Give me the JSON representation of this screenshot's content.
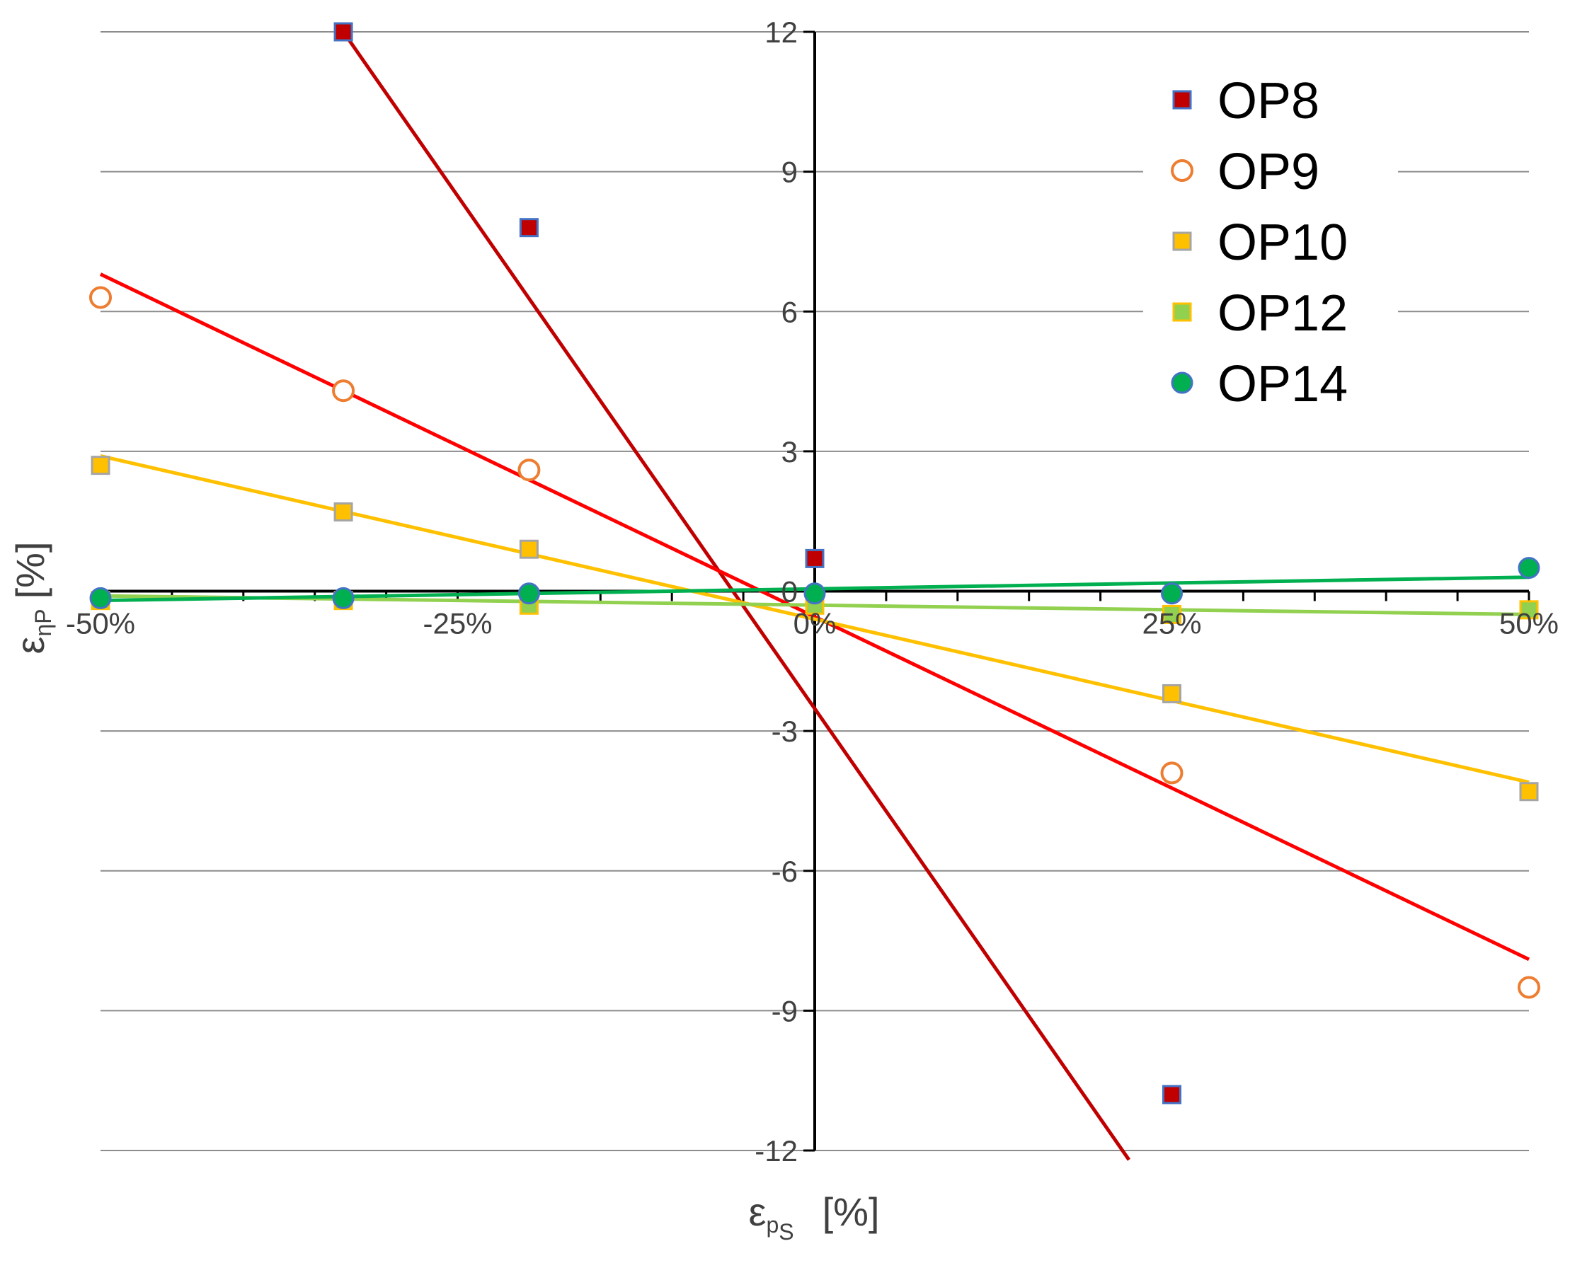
{
  "chart_data": {
    "type": "scatter",
    "title": "",
    "xlabel": {
      "symbol": "ε",
      "subscript": "p",
      "subsubscript": "S",
      "unit": "[%]"
    },
    "ylabel": {
      "symbol": "ε",
      "subscript": "ηP",
      "unit": "[%]"
    },
    "xlim": [
      -50,
      50
    ],
    "ylim": [
      -12,
      12
    ],
    "x_ticks": [
      {
        "value": -50,
        "label": "-50%"
      },
      {
        "value": -25,
        "label": "-25%"
      },
      {
        "value": 0,
        "label": "0%"
      },
      {
        "value": 25,
        "label": "25%"
      },
      {
        "value": 50,
        "label": "50%"
      }
    ],
    "y_ticks": [
      {
        "value": 12,
        "label": "12"
      },
      {
        "value": 9,
        "label": "9"
      },
      {
        "value": 6,
        "label": "6"
      },
      {
        "value": 3,
        "label": "3"
      },
      {
        "value": 0,
        "label": "0"
      },
      {
        "value": -3,
        "label": "-3"
      },
      {
        "value": -6,
        "label": "-6"
      },
      {
        "value": -9,
        "label": "-9"
      },
      {
        "value": -12,
        "label": "-12"
      }
    ],
    "grid": true,
    "legend_position": "top-right",
    "series": [
      {
        "name": "OP8",
        "marker": "square",
        "fill": "#c00000",
        "stroke": "#4472c4",
        "line_color": "#c00000",
        "points": [
          [
            -33,
            12
          ],
          [
            -20,
            7.8
          ],
          [
            0,
            0.7
          ],
          [
            25,
            -10.8
          ]
        ],
        "trend": {
          "from": [
            -33,
            12
          ],
          "to": [
            22,
            -12.2
          ]
        }
      },
      {
        "name": "OP9",
        "marker": "circle-open",
        "fill": "#ffffff",
        "stroke": "#ed7d31",
        "line_color": "#ff0000",
        "points": [
          [
            -50,
            6.3
          ],
          [
            -33,
            4.3
          ],
          [
            -20,
            2.6
          ],
          [
            25,
            -3.9
          ],
          [
            50,
            -8.5
          ]
        ],
        "trend": {
          "from": [
            -50,
            6.8
          ],
          "to": [
            50,
            -7.9
          ]
        }
      },
      {
        "name": "OP10",
        "marker": "square",
        "fill": "#ffc000",
        "stroke": "#a5a5a5",
        "line_color": "#ffc000",
        "points": [
          [
            -50,
            2.7
          ],
          [
            -33,
            1.7
          ],
          [
            -20,
            0.9
          ],
          [
            25,
            -2.2
          ],
          [
            50,
            -4.3
          ]
        ],
        "trend": {
          "from": [
            -50,
            2.9
          ],
          "to": [
            50,
            -4.1
          ]
        }
      },
      {
        "name": "OP12",
        "marker": "square",
        "fill": "#92d050",
        "stroke": "#ffc000",
        "line_color": "#92d050",
        "points": [
          [
            -50,
            -0.2
          ],
          [
            -33,
            -0.2
          ],
          [
            -20,
            -0.3
          ],
          [
            0,
            -0.3
          ],
          [
            25,
            -0.5
          ],
          [
            50,
            -0.4
          ]
        ],
        "trend": {
          "from": [
            -50,
            -0.1
          ],
          "to": [
            50,
            -0.5
          ]
        }
      },
      {
        "name": "OP14",
        "marker": "circle",
        "fill": "#00b050",
        "stroke": "#4472c4",
        "line_color": "#00b050",
        "points": [
          [
            -50,
            -0.15
          ],
          [
            -33,
            -0.15
          ],
          [
            -20,
            -0.05
          ],
          [
            0,
            -0.05
          ],
          [
            25,
            -0.05
          ],
          [
            50,
            0.5
          ]
        ],
        "trend": {
          "from": [
            -50,
            -0.2
          ],
          "to": [
            50,
            0.3
          ]
        }
      }
    ]
  }
}
